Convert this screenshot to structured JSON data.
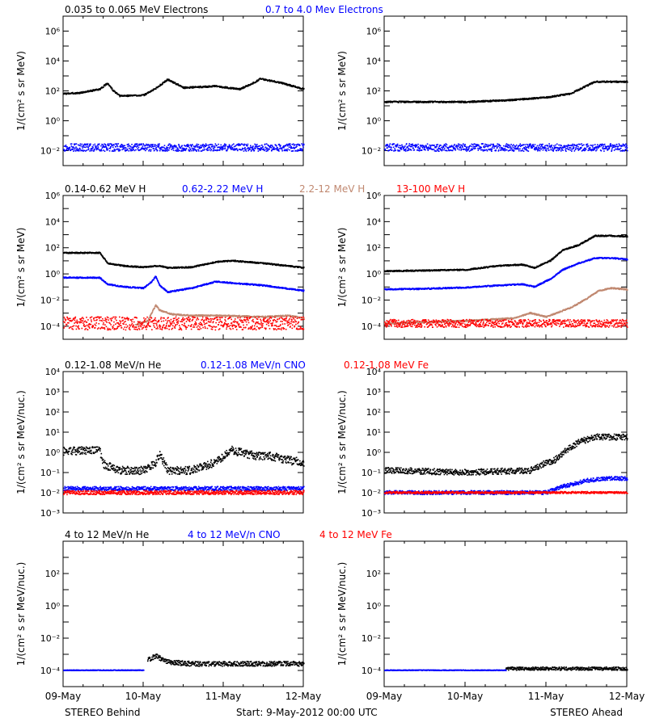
{
  "footer": {
    "left": "STEREO Behind",
    "center": "Start:  9-May-2012 00:00 UTC",
    "right": "STEREO Ahead"
  },
  "x_ticks": [
    "09-May",
    "10-May",
    "11-May",
    "12-May"
  ],
  "colors": {
    "black": "#000000",
    "blue": "#0000ff",
    "tan": "#c08870",
    "red": "#ff0000"
  },
  "chart_data": [
    {
      "type": "scatter",
      "row": 0,
      "ylabel": "1/(cm² s sr MeV)",
      "ylim_log": [
        -3,
        7
      ],
      "yticks": [
        "10⁻²",
        "10⁰",
        "10²",
        "10⁴",
        "10⁶"
      ],
      "ytick_exps": [
        -2,
        0,
        2,
        4,
        6
      ],
      "legend": [
        {
          "name": "0.035 to 0.065 MeV Electrons",
          "color": "#000000"
        },
        {
          "name": "0.7 to 4.0 Mev Electrons",
          "color": "#0000ff"
        }
      ],
      "behind": [
        {
          "color": "#000000",
          "x": [
            0,
            0.2,
            0.45,
            0.55,
            0.62,
            0.7,
            1.0,
            1.15,
            1.3,
            1.5,
            1.9,
            2.2,
            2.4,
            2.45,
            2.7,
            3.0
          ],
          "y": [
            1.8,
            1.85,
            2.1,
            2.5,
            2.0,
            1.65,
            1.7,
            2.15,
            2.75,
            2.2,
            2.3,
            2.1,
            2.6,
            2.8,
            2.55,
            2.1
          ]
        },
        {
          "color": "#0000ff",
          "x": [
            0,
            3.0
          ],
          "y": [
            -1.8,
            -1.8
          ],
          "band": 0.25
        }
      ],
      "ahead": [
        {
          "color": "#000000",
          "x": [
            0,
            0.6,
            1.0,
            1.5,
            2.0,
            2.3,
            2.6,
            2.8,
            3.0
          ],
          "y": [
            1.25,
            1.25,
            1.25,
            1.35,
            1.55,
            1.8,
            2.6,
            2.6,
            2.6
          ]
        },
        {
          "color": "#0000ff",
          "x": [
            0,
            3.0
          ],
          "y": [
            -1.8,
            -1.8
          ],
          "band": 0.25
        }
      ]
    },
    {
      "type": "scatter",
      "row": 1,
      "ylabel": "1/(cm² s sr MeV)",
      "ylim_log": [
        -5,
        6
      ],
      "yticks": [
        "10⁻⁴",
        "10⁻²",
        "10⁰",
        "10²",
        "10⁴",
        "10⁶"
      ],
      "ytick_exps": [
        -4,
        -2,
        0,
        2,
        4,
        6
      ],
      "legend": [
        {
          "name": "0.14-0.62 MeV H",
          "color": "#000000"
        },
        {
          "name": "0.62-2.22 MeV H",
          "color": "#0000ff"
        },
        {
          "name": "2.2-12 MeV H",
          "color": "#c08870"
        },
        {
          "name": "13-100 MeV H",
          "color": "#ff0000"
        }
      ],
      "behind": [
        {
          "color": "#000000",
          "x": [
            0,
            0.45,
            0.55,
            0.75,
            1.0,
            1.15,
            1.2,
            1.3,
            1.6,
            1.9,
            2.1,
            2.5,
            2.8,
            3.0
          ],
          "y": [
            1.6,
            1.6,
            0.8,
            0.6,
            0.5,
            0.6,
            0.6,
            0.45,
            0.5,
            0.9,
            1.0,
            0.8,
            0.6,
            0.45
          ]
        },
        {
          "color": "#0000ff",
          "x": [
            0,
            0.45,
            0.55,
            0.75,
            1.0,
            1.1,
            1.15,
            1.2,
            1.3,
            1.6,
            1.9,
            2.5,
            3.0
          ],
          "y": [
            -0.3,
            -0.3,
            -0.8,
            -1.0,
            -1.1,
            -0.6,
            -0.2,
            -0.9,
            -1.4,
            -1.1,
            -0.6,
            -0.9,
            -1.3
          ]
        },
        {
          "color": "#c08870",
          "x": [
            0.9,
            1.05,
            1.15,
            1.2,
            1.35,
            1.6,
            2.0,
            2.5,
            2.8,
            3.0
          ],
          "y": [
            -3.9,
            -3.6,
            -2.4,
            -2.8,
            -3.1,
            -3.2,
            -3.2,
            -3.3,
            -3.2,
            -3.4
          ]
        },
        {
          "color": "#ff0000",
          "x": [
            0,
            3.0
          ],
          "y": [
            -3.8,
            -3.8
          ],
          "band": 0.5
        }
      ],
      "ahead": [
        {
          "color": "#000000",
          "x": [
            0,
            0.5,
            1.0,
            1.4,
            1.7,
            1.85,
            2.05,
            2.2,
            2.4,
            2.6,
            2.8,
            3.0
          ],
          "y": [
            0.2,
            0.25,
            0.3,
            0.6,
            0.7,
            0.45,
            1.0,
            1.8,
            2.2,
            2.9,
            2.9,
            2.85
          ]
        },
        {
          "color": "#0000ff",
          "x": [
            0,
            0.5,
            1.0,
            1.4,
            1.7,
            1.85,
            2.05,
            2.2,
            2.4,
            2.6,
            2.8,
            3.0
          ],
          "y": [
            -1.2,
            -1.15,
            -1.05,
            -0.9,
            -0.8,
            -1.0,
            -0.4,
            0.3,
            0.8,
            1.2,
            1.2,
            1.1
          ]
        },
        {
          "color": "#c08870",
          "x": [
            0,
            1.0,
            1.6,
            1.8,
            2.0,
            2.3,
            2.5,
            2.65,
            2.8,
            3.0
          ],
          "y": [
            -3.8,
            -3.6,
            -3.4,
            -3.0,
            -3.3,
            -2.6,
            -1.9,
            -1.3,
            -1.1,
            -1.2
          ]
        },
        {
          "color": "#ff0000",
          "x": [
            0,
            3.0
          ],
          "y": [
            -3.8,
            -3.8
          ],
          "band": 0.3
        }
      ]
    },
    {
      "type": "scatter",
      "row": 2,
      "ylabel": "1/(cm² s sr MeV/nuc.)",
      "ylim_log": [
        -3,
        4
      ],
      "yticks": [
        "10⁻³",
        "10⁻²",
        "10⁻¹",
        "10⁰",
        "10¹",
        "10²",
        "10³",
        "10⁴"
      ],
      "ytick_exps": [
        -3,
        -2,
        -1,
        0,
        1,
        2,
        3,
        4
      ],
      "legend": [
        {
          "name": "0.12-1.08 MeV/n He",
          "color": "#000000"
        },
        {
          "name": "0.12-1.08 MeV/n CNO",
          "color": "#0000ff"
        },
        {
          "name": "0.12-1.08 MeV Fe",
          "color": "#ff0000"
        }
      ],
      "behind": [
        {
          "color": "#000000",
          "x": [
            0,
            0.45,
            0.5,
            0.7,
            1.0,
            1.15,
            1.2,
            1.3,
            1.6,
            1.9,
            2.1,
            2.4,
            2.6,
            2.8,
            3.0
          ],
          "y": [
            0.05,
            0.1,
            -0.6,
            -0.9,
            -0.9,
            -0.5,
            -0.1,
            -0.9,
            -0.9,
            -0.5,
            0.1,
            -0.2,
            -0.2,
            -0.4,
            -0.5
          ],
          "band": 0.2
        },
        {
          "color": "#0000ff",
          "x": [
            0,
            3.0
          ],
          "y": [
            -1.8,
            -1.8
          ],
          "band": 0.1
        },
        {
          "color": "#ff0000",
          "x": [
            0,
            3.0
          ],
          "y": [
            -2.0,
            -2.0
          ],
          "band": 0.1
        }
      ],
      "ahead": [
        {
          "color": "#000000",
          "x": [
            0,
            1.0,
            1.8,
            1.95,
            2.1,
            2.25,
            2.4,
            2.6,
            2.8,
            3.0
          ],
          "y": [
            -0.9,
            -1.0,
            -0.9,
            -0.6,
            -0.4,
            0.1,
            0.5,
            0.75,
            0.75,
            0.75
          ],
          "band": 0.15
        },
        {
          "color": "#0000ff",
          "x": [
            0,
            2.0,
            2.2,
            2.5,
            2.8,
            3.0
          ],
          "y": [
            -2.0,
            -2.0,
            -1.7,
            -1.4,
            -1.3,
            -1.3
          ],
          "band": 0.1
        },
        {
          "color": "#ff0000",
          "x": [
            0,
            3.0
          ],
          "y": [
            -2.0,
            -2.0
          ],
          "band": 0.05
        }
      ]
    },
    {
      "type": "scatter",
      "row": 3,
      "ylabel": "1/(cm² s sr MeV/nuc.)",
      "ylim_log": [
        -5,
        4
      ],
      "yticks": [
        "10⁻⁴",
        "10⁻²",
        "10⁰",
        "10²"
      ],
      "ytick_exps": [
        -4,
        -2,
        0,
        2
      ],
      "legend": [
        {
          "name": "4 to 12 MeV/n He",
          "color": "#000000"
        },
        {
          "name": "4 to 12 MeV/n CNO",
          "color": "#0000ff"
        },
        {
          "name": "4 to 12 MeV Fe",
          "color": "#ff0000"
        }
      ],
      "behind": [
        {
          "color": "#000000",
          "x": [
            1.05,
            1.15,
            1.3,
            1.6,
            2.0,
            2.5,
            3.0
          ],
          "y": [
            -3.4,
            -3.1,
            -3.5,
            -3.6,
            -3.6,
            -3.6,
            -3.6
          ],
          "band": 0.15
        },
        {
          "color": "#0000ff",
          "x": [
            0,
            1.0
          ],
          "y": [
            -4.0,
            -4.0
          ],
          "band": 0.02
        }
      ],
      "ahead": [
        {
          "color": "#000000",
          "x": [
            1.5,
            3.0
          ],
          "y": [
            -3.9,
            -3.9
          ],
          "band": 0.1
        },
        {
          "color": "#0000ff",
          "x": [
            0,
            1.5
          ],
          "y": [
            -4.0,
            -4.0
          ],
          "band": 0.02
        }
      ]
    }
  ]
}
